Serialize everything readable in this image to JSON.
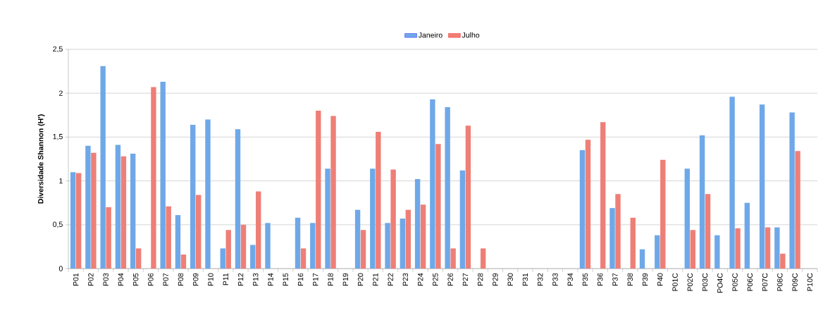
{
  "chart_data": {
    "type": "bar",
    "ylabel": "Diversidade Shannon (H')",
    "categories": [
      "P01",
      "P02",
      "P03",
      "P04",
      "P05",
      "P06",
      "P07",
      "P08",
      "P09",
      "P10",
      "P11",
      "P12",
      "P13",
      "P14",
      "P15",
      "P16",
      "P17",
      "P18",
      "P19",
      "P20",
      "P21",
      "P22",
      "P23",
      "P24",
      "P25",
      "P26",
      "P27",
      "P28",
      "P29",
      "P30",
      "P31",
      "P32",
      "P33",
      "P34",
      "P35",
      "P36",
      "P37",
      "P38",
      "P39",
      "P40",
      "P01C",
      "P02C",
      "P03C",
      "PO4C",
      "P05C",
      "P06C",
      "P07C",
      "P08C",
      "P09C",
      "P10C"
    ],
    "series": [
      {
        "name": "Janeiro",
        "color": "#6fa8e8",
        "values": [
          1.1,
          1.4,
          2.31,
          1.41,
          1.31,
          null,
          2.13,
          0.61,
          1.64,
          1.7,
          0.23,
          1.59,
          0.27,
          0.52,
          null,
          0.58,
          0.52,
          1.14,
          null,
          0.67,
          1.14,
          0.52,
          0.57,
          1.02,
          1.93,
          1.84,
          1.12,
          null,
          null,
          null,
          null,
          null,
          null,
          null,
          1.35,
          null,
          0.69,
          null,
          0.22,
          0.38,
          null,
          1.14,
          1.52,
          0.38,
          1.96,
          0.75,
          1.87,
          0.47,
          1.78,
          null
        ]
      },
      {
        "name": "Julho",
        "color": "#ee7f77",
        "values": [
          1.09,
          1.32,
          0.7,
          1.28,
          0.23,
          2.07,
          0.71,
          0.16,
          0.84,
          null,
          0.44,
          0.5,
          0.88,
          null,
          null,
          0.23,
          1.8,
          1.74,
          null,
          0.44,
          1.56,
          1.13,
          0.67,
          0.73,
          1.42,
          0.23,
          1.63,
          0.23,
          null,
          null,
          null,
          null,
          null,
          null,
          1.47,
          1.67,
          0.85,
          0.58,
          null,
          1.24,
          null,
          0.44,
          0.85,
          null,
          0.46,
          null,
          0.47,
          0.17,
          1.34,
          null
        ]
      }
    ],
    "ylim": [
      0,
      2.5
    ],
    "yticks": [
      0,
      {
        "value": 0.5,
        "label": "0,5"
      },
      1,
      {
        "value": 1.5,
        "label": "1,5"
      },
      2,
      {
        "value": 2.5,
        "label": "2,5"
      }
    ],
    "grid": "y",
    "legend": "top"
  }
}
